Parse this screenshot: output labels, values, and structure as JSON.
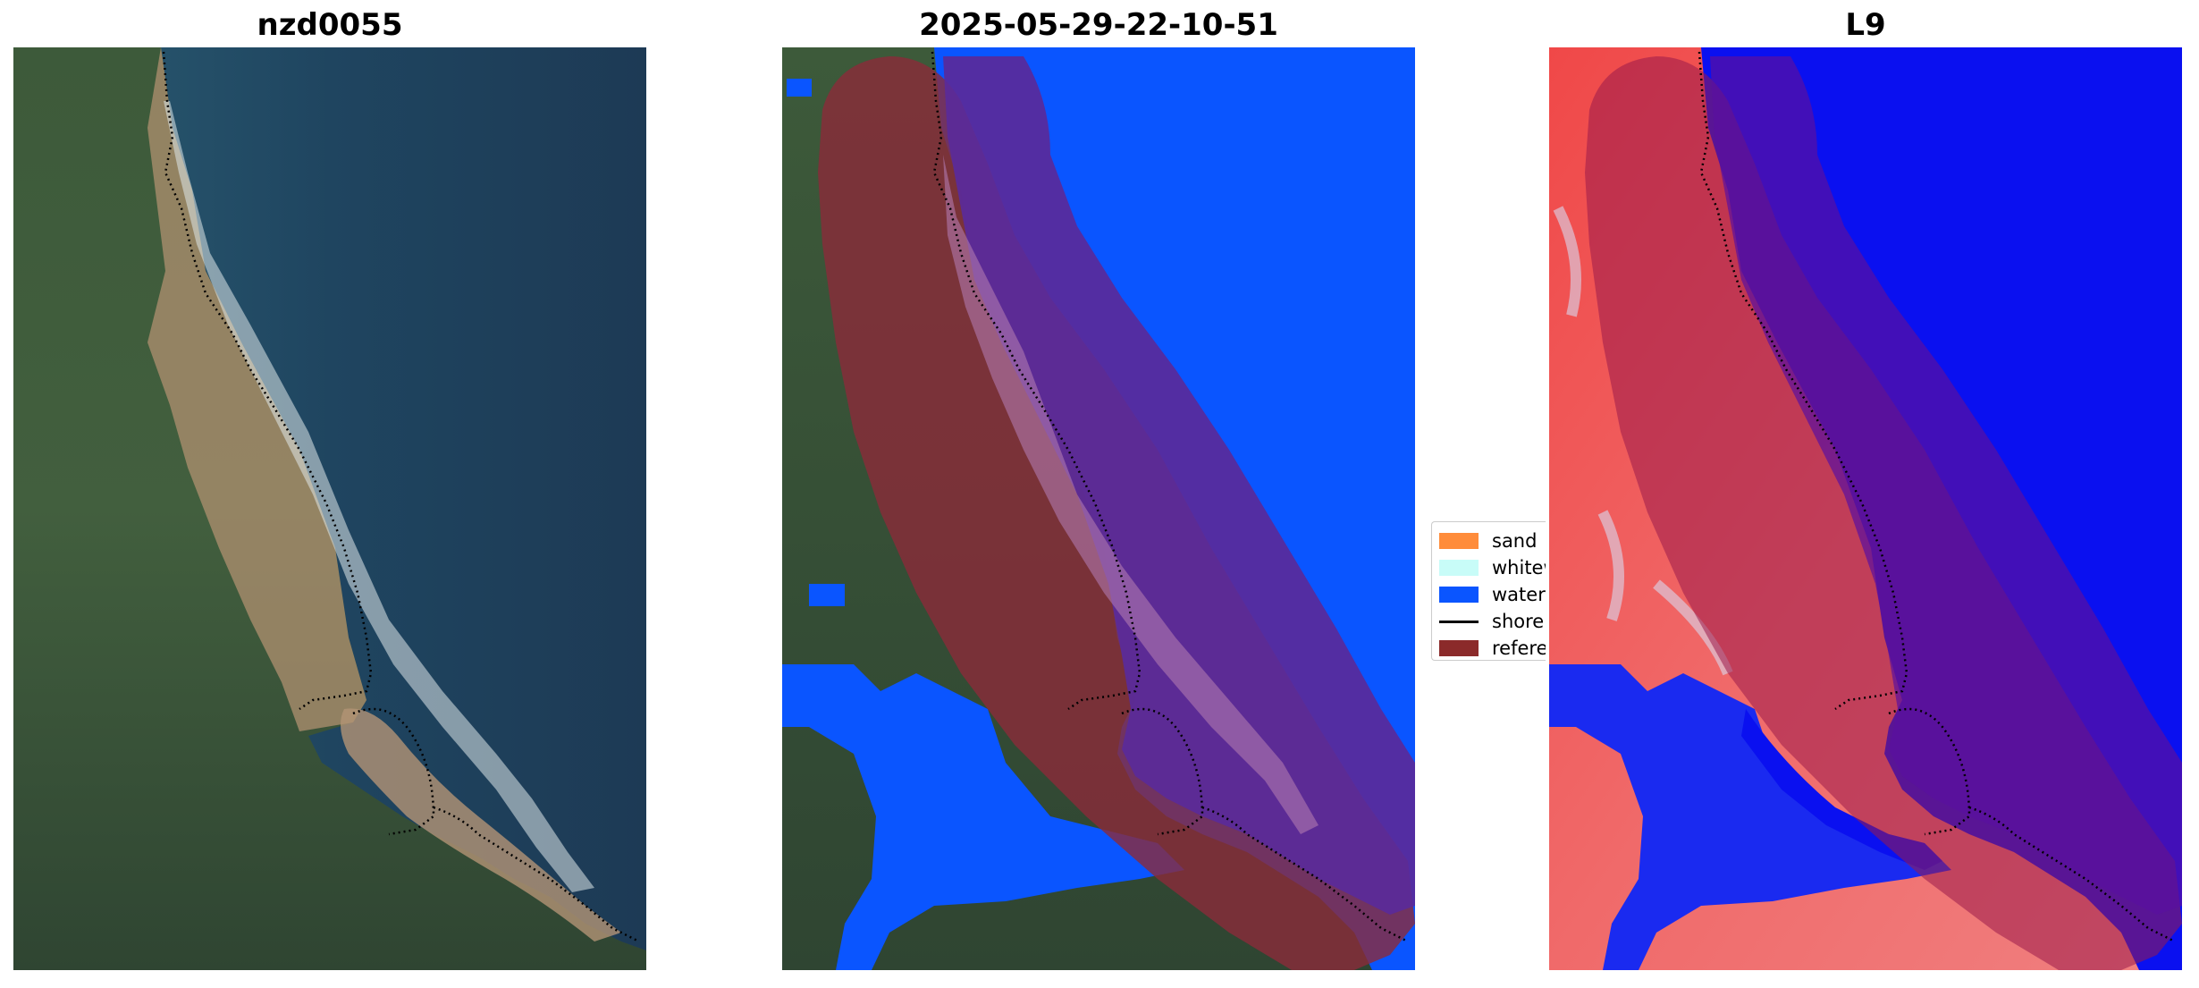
{
  "panels": [
    {
      "title": "nzd0055",
      "kind": "rgb-satellite"
    },
    {
      "title": "2025-05-29-22-10-51",
      "kind": "classification-overlay"
    },
    {
      "title": "L9",
      "kind": "index-map"
    }
  ],
  "legend": {
    "items": [
      {
        "label": "sand",
        "color": "#ff8c3a",
        "shape": "patch"
      },
      {
        "label": "whitew",
        "color": "#c8fcf8",
        "shape": "patch"
      },
      {
        "label": "water",
        "color": "#0a55ff",
        "shape": "patch"
      },
      {
        "label": "shorel",
        "color": "#000000",
        "shape": "line"
      },
      {
        "label": "referen",
        "color": "#8b2a2a",
        "shape": "patch"
      }
    ]
  },
  "colors": {
    "ocean_deep": "#1f3d58",
    "ocean_near": "#2a5a70",
    "land_green": "#3e5a3a",
    "land_dark": "#2c3f2c",
    "sand_beach": "#b39476",
    "surf_white": "#dfe8ea",
    "class_water": "#0a55ff",
    "reference_overlay": "#8b2a3a",
    "buffer_purple": "#5a2a9a",
    "index_blue": "#0a10f0",
    "index_red": "#f05050"
  }
}
